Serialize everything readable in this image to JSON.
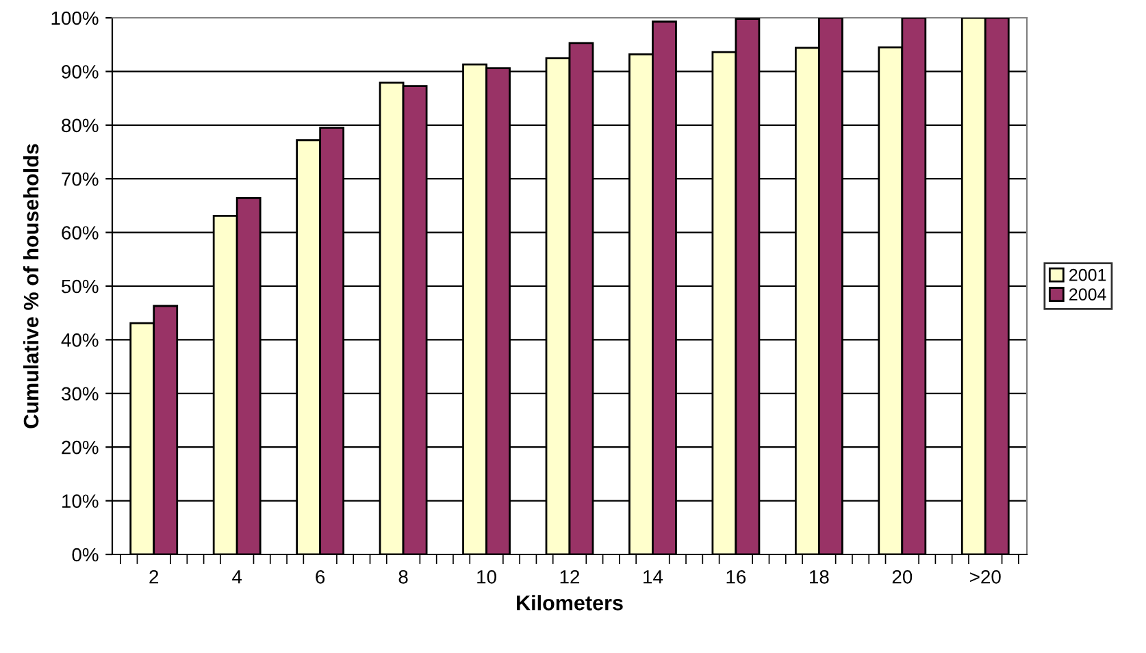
{
  "chart_data": {
    "type": "bar",
    "xlabel": "Kilometers",
    "ylabel": "Cumulative % of households",
    "categories": [
      "2",
      "4",
      "6",
      "8",
      "10",
      "12",
      "14",
      "16",
      "18",
      "20",
      ">20"
    ],
    "series": [
      {
        "name": "2001",
        "color": "#ffffcc",
        "values": [
          43.1,
          63.1,
          77.2,
          87.9,
          91.3,
          92.5,
          93.2,
          93.6,
          94.4,
          94.5,
          100
        ]
      },
      {
        "name": "2004",
        "color": "#993366",
        "values": [
          46.3,
          66.4,
          79.5,
          87.3,
          90.6,
          95.3,
          99.3,
          99.8,
          100,
          100,
          100
        ]
      }
    ],
    "ylim": [
      0,
      100
    ],
    "yticks": [
      {
        "value": 0,
        "label": "0%"
      },
      {
        "value": 10,
        "label": "10%"
      },
      {
        "value": 20,
        "label": "20%"
      },
      {
        "value": 30,
        "label": "30%"
      },
      {
        "value": 40,
        "label": "40%"
      },
      {
        "value": 50,
        "label": "50%"
      },
      {
        "value": 60,
        "label": "60%"
      },
      {
        "value": 70,
        "label": "70%"
      },
      {
        "value": 80,
        "label": "80%"
      },
      {
        "value": 90,
        "label": "90%"
      },
      {
        "value": 100,
        "label": "100%"
      }
    ],
    "grid": "y",
    "legend": "right"
  }
}
